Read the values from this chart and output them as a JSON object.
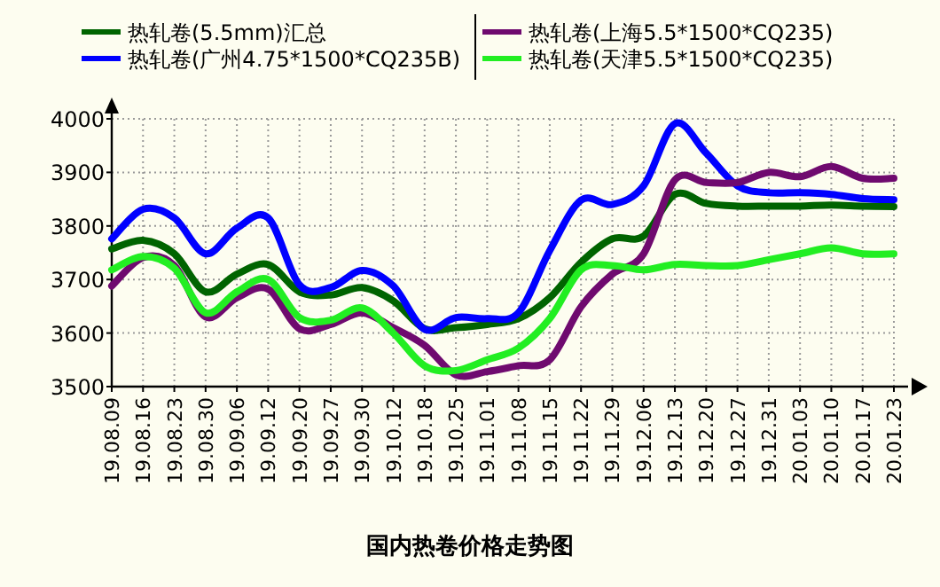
{
  "chart_data": {
    "type": "line",
    "title": "国内热卷价格走势图",
    "categories": [
      "19.08.09",
      "19.08.16",
      "19.08.23",
      "19.08.30",
      "19.09.06",
      "19.09.12",
      "19.09.20",
      "19.09.27",
      "19.09.30",
      "19.10.12",
      "19.10.18",
      "19.10.25",
      "19.11.01",
      "19.11.08",
      "19.11.15",
      "19.11.22",
      "19.11.29",
      "19.12.06",
      "19.12.13",
      "19.12.20",
      "19.12.27",
      "19.12.31",
      "20.01.03",
      "20.01.10",
      "20.01.17",
      "20.01.23"
    ],
    "series": [
      {
        "name": "热轧卷(5.5mm)汇总",
        "color": "#006400",
        "values": [
          3757,
          3773,
          3748,
          3677,
          3710,
          3728,
          3677,
          3671,
          3685,
          3660,
          3608,
          3610,
          3616,
          3627,
          3666,
          3732,
          3776,
          3781,
          3859,
          3842,
          3837,
          3837,
          3837,
          3839,
          3837,
          3836
        ]
      },
      {
        "name": "热轧卷(广州4.75*1500*CQ235B)",
        "color": "#0000ff",
        "values": [
          3776,
          3831,
          3815,
          3748,
          3796,
          3815,
          3690,
          3685,
          3717,
          3688,
          3607,
          3629,
          3627,
          3638,
          3754,
          3848,
          3840,
          3875,
          3991,
          3936,
          3875,
          3862,
          3862,
          3859,
          3851,
          3849
        ]
      },
      {
        "name": "热轧卷(上海5.5*1500*CQ235)",
        "color": "#6f0a6f",
        "values": [
          3688,
          3741,
          3726,
          3630,
          3666,
          3682,
          3608,
          3616,
          3638,
          3610,
          3577,
          3522,
          3528,
          3539,
          3550,
          3649,
          3710,
          3748,
          3886,
          3881,
          3881,
          3900,
          3892,
          3911,
          3889,
          3889
        ]
      },
      {
        "name": "热轧卷(天津5.5*1500*CQ235)",
        "color": "#22ee22",
        "values": [
          3718,
          3743,
          3721,
          3638,
          3677,
          3700,
          3629,
          3624,
          3647,
          3600,
          3539,
          3530,
          3550,
          3572,
          3627,
          3718,
          3726,
          3718,
          3728,
          3726,
          3726,
          3737,
          3748,
          3759,
          3748,
          3748
        ]
      }
    ],
    "ylim": [
      3500,
      4000
    ],
    "yticks": [
      3500,
      3600,
      3700,
      3800,
      3900,
      4000
    ],
    "grid": true,
    "legend": "top",
    "marker": "none",
    "line_style": "solid"
  }
}
